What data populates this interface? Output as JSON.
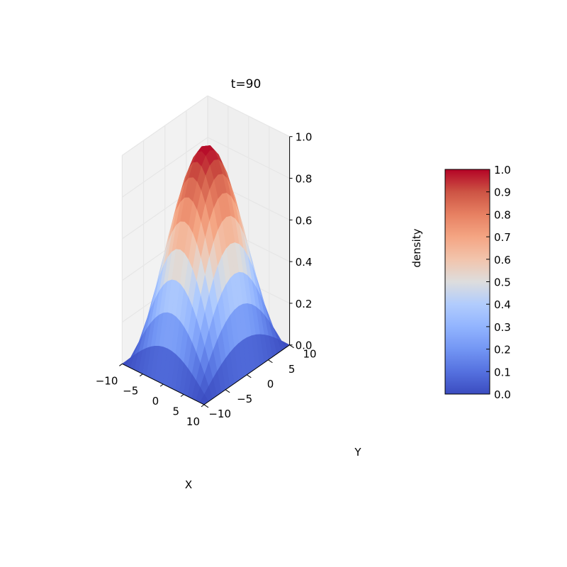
{
  "chart_data": {
    "type": "surface",
    "title": "t=90",
    "xlabel": "X",
    "ylabel": "Y",
    "zlabel": "density",
    "xlim": [
      -10,
      10
    ],
    "ylim": [
      -10,
      10
    ],
    "zlim": [
      0,
      1.0
    ],
    "x_ticks": [
      "−10",
      "−5",
      "0",
      "5",
      "10"
    ],
    "y_ticks": [
      "−10",
      "−5",
      "0",
      "5",
      "10"
    ],
    "z_ticks": [
      "0.0",
      "0.2",
      "0.4",
      "0.6",
      "0.8",
      "1.0"
    ],
    "grid": true,
    "colormap": "coolwarm",
    "peak_value": 1.0,
    "surface_formula": "z = cos(pi*x/20) * cos(pi*y/20)",
    "colorbar": {
      "min": 0.0,
      "max": 1.0,
      "ticks": [
        "0.0",
        "0.1",
        "0.2",
        "0.3",
        "0.4",
        "0.5",
        "0.6",
        "0.7",
        "0.8",
        "0.9",
        "1.0"
      ]
    },
    "colors": {
      "low": "#3b4cc0",
      "mid": "#dddddd",
      "high": "#b40426",
      "pane": "#f2f2f2",
      "grid": "#e6e6e6"
    }
  }
}
